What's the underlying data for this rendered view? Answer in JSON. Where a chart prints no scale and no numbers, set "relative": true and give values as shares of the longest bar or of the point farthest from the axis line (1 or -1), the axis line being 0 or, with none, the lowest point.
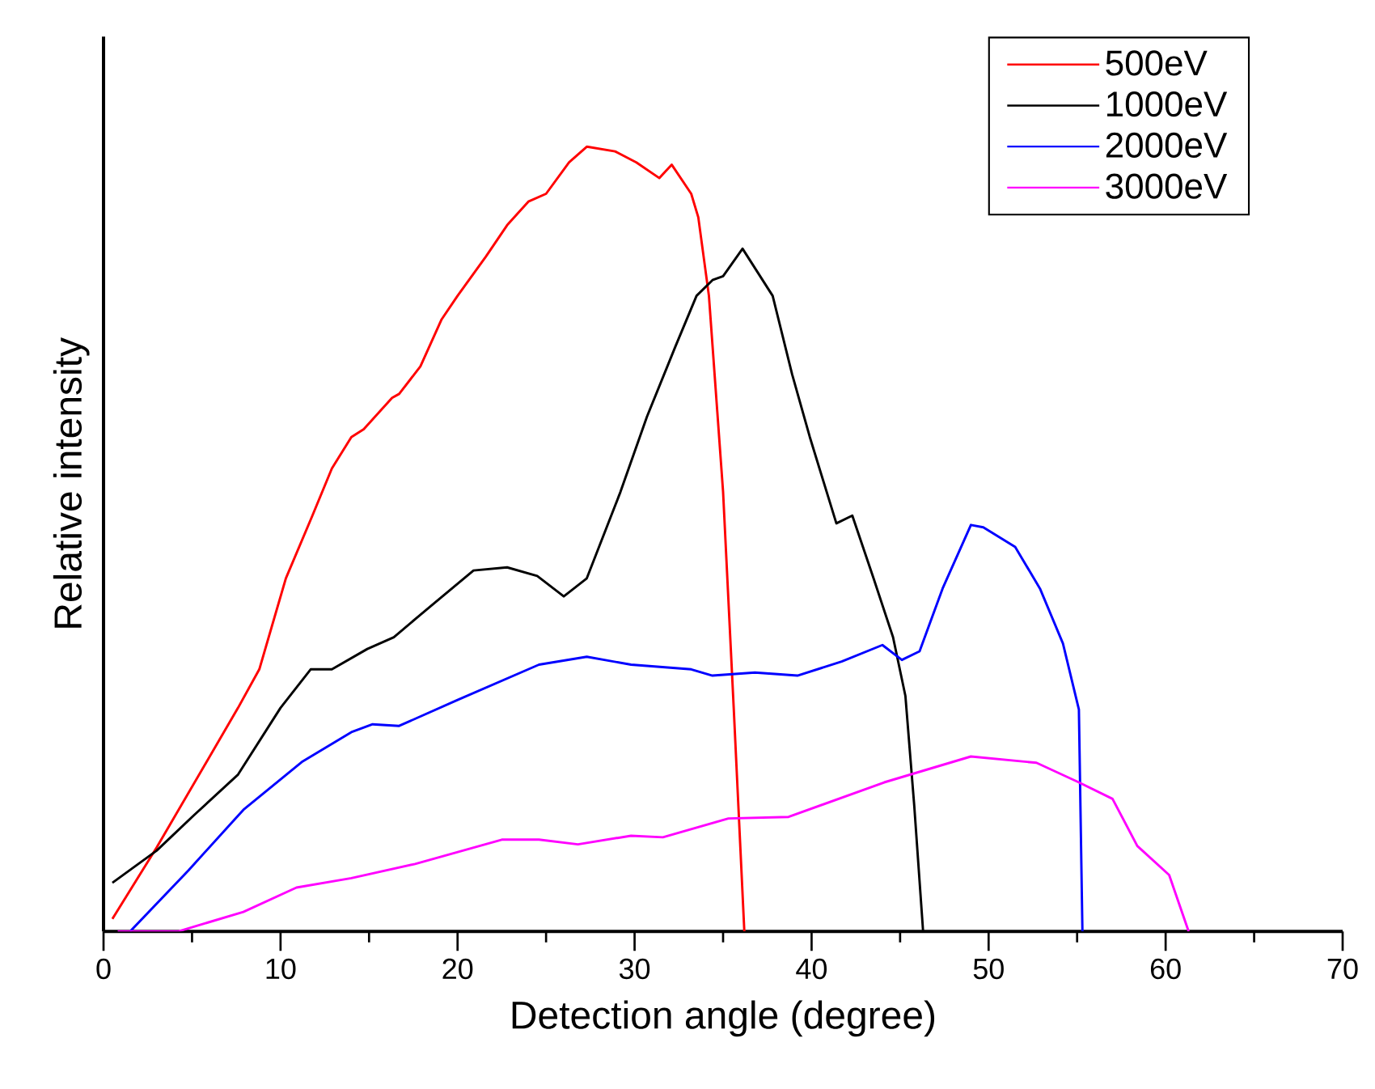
{
  "chart_data": {
    "type": "line",
    "relative": true,
    "xlabel": "Detection angle (degree)",
    "ylabel": "Relative intensity",
    "xlim": [
      0,
      70
    ],
    "xticks": [
      0,
      10,
      20,
      30,
      40,
      50,
      60,
      70
    ],
    "legend": "top right",
    "grid": false,
    "marker": "none",
    "line_style": "solid",
    "series": [
      {
        "name": "500eV",
        "color": "#ff0000",
        "x": [
          0.5,
          3.0,
          7.6,
          8.8,
          10.3,
          11.8,
          12.9,
          14.0,
          14.7,
          16.3,
          16.7,
          17.9,
          19.1,
          20.0,
          21.6,
          22.8,
          24.0,
          25.0,
          26.3,
          27.3,
          28.9,
          30.1,
          31.4,
          32.1,
          33.2,
          33.6,
          34.2,
          35.0,
          35.6,
          36.2
        ],
        "values": [
          0.016,
          0.107,
          0.285,
          0.334,
          0.45,
          0.53,
          0.59,
          0.63,
          0.64,
          0.68,
          0.685,
          0.72,
          0.78,
          0.81,
          0.86,
          0.9,
          0.93,
          0.94,
          0.98,
          1.0,
          0.994,
          0.98,
          0.96,
          0.977,
          0.94,
          0.91,
          0.81,
          0.56,
          0.285,
          0
        ]
      },
      {
        "name": "1000eV",
        "color": "#000000",
        "x": [
          0.5,
          3.0,
          5.1,
          7.6,
          10.0,
          11.7,
          12.9,
          14.9,
          16.4,
          18.5,
          20.9,
          22.8,
          24.5,
          26.0,
          27.3,
          29.2,
          30.7,
          32.3,
          33.5,
          34.4,
          35.0,
          36.1,
          37.8,
          38.9,
          39.9,
          41.4,
          42.3,
          43.5,
          44.6,
          45.3,
          45.8,
          46.3
        ],
        "values": [
          0.062,
          0.103,
          0.148,
          0.2,
          0.285,
          0.334,
          0.334,
          0.36,
          0.375,
          0.415,
          0.46,
          0.464,
          0.453,
          0.427,
          0.45,
          0.56,
          0.656,
          0.745,
          0.81,
          0.83,
          0.835,
          0.87,
          0.81,
          0.71,
          0.63,
          0.52,
          0.53,
          0.45,
          0.375,
          0.3,
          0.16,
          0
        ]
      },
      {
        "name": "2000eV",
        "color": "#0000ff",
        "x": [
          1.5,
          4.8,
          7.9,
          11.2,
          14.0,
          15.2,
          16.7,
          20.0,
          24.6,
          27.3,
          29.8,
          33.2,
          34.4,
          36.8,
          39.2,
          41.7,
          44.0,
          45.1,
          46.1,
          47.4,
          49.0,
          49.7,
          51.5,
          52.9,
          54.2,
          55.1,
          55.3
        ],
        "values": [
          0,
          0.078,
          0.155,
          0.216,
          0.254,
          0.264,
          0.262,
          0.295,
          0.34,
          0.35,
          0.34,
          0.334,
          0.326,
          0.33,
          0.326,
          0.344,
          0.365,
          0.346,
          0.357,
          0.437,
          0.518,
          0.515,
          0.49,
          0.437,
          0.367,
          0.283,
          0
        ]
      },
      {
        "name": "3000eV",
        "color": "#ff00ff",
        "x": [
          0.8,
          4.2,
          7.9,
          10.9,
          14.0,
          17.6,
          22.5,
          24.6,
          26.8,
          29.8,
          31.6,
          35.3,
          38.7,
          44.1,
          49.0,
          52.7,
          55.1,
          57.0,
          58.4,
          60.2,
          61.3
        ],
        "values": [
          0,
          0,
          0.025,
          0.056,
          0.068,
          0.086,
          0.117,
          0.117,
          0.111,
          0.122,
          0.12,
          0.144,
          0.146,
          0.19,
          0.223,
          0.215,
          0.19,
          0.169,
          0.109,
          0.072,
          0
        ]
      }
    ]
  }
}
